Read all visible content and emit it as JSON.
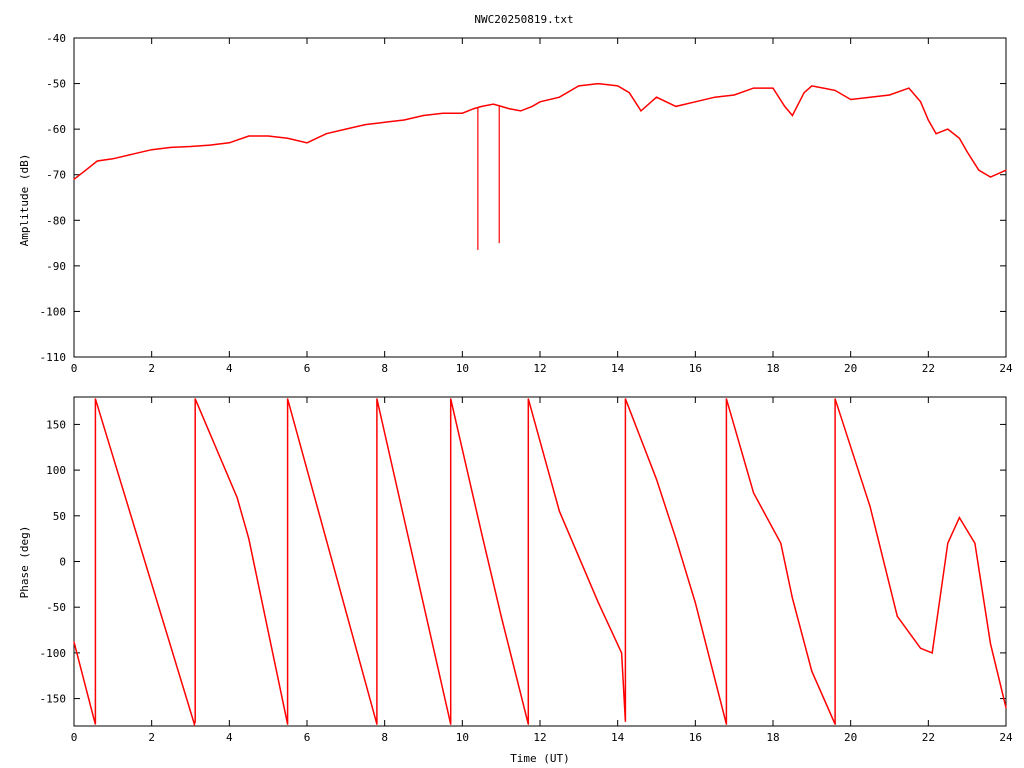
{
  "title": "NWC20250819.txt",
  "colors": {
    "trace": "#ff0000",
    "axis": "#000000",
    "background": "#ffffff"
  },
  "chart_data": [
    {
      "type": "line",
      "ylabel": "Amplitude (dB)",
      "xlabel": "",
      "xlim": [
        0,
        24
      ],
      "ylim": [
        -110,
        -40
      ],
      "xticks": [
        0,
        2,
        4,
        6,
        8,
        10,
        12,
        14,
        16,
        18,
        20,
        22,
        24
      ],
      "yticks": [
        -110,
        -100,
        -90,
        -80,
        -70,
        -60,
        -50,
        -40
      ],
      "xtick_labels": [
        "0",
        "2",
        "4",
        "6",
        "8",
        "10",
        "12",
        "14",
        "16",
        "18",
        "20",
        "22",
        "24"
      ],
      "ytick_labels": [
        "-110",
        "-100",
        "-90",
        "-80",
        "-70",
        "-60",
        "-50",
        "-40"
      ],
      "grid": false,
      "series": [
        {
          "x": [
            0,
            0.3,
            0.6,
            1,
            1.5,
            2,
            2.5,
            3,
            3.5,
            4,
            4.5,
            5,
            5.5,
            6,
            6.5,
            7,
            7.5,
            8,
            8.5,
            9,
            9.5,
            10,
            10.3,
            10.5,
            10.8,
            11,
            11.2,
            11.5,
            11.8,
            12,
            12.5,
            13,
            13.5,
            14,
            14.3,
            14.6,
            15,
            15.5,
            16,
            16.5,
            17,
            17.5,
            18,
            18.3,
            18.5,
            18.8,
            19,
            19.3,
            19.6,
            20,
            20.5,
            21,
            21.5,
            21.8,
            22,
            22.2,
            22.5,
            22.8,
            23,
            23.3,
            23.6,
            24
          ],
          "y": [
            -71,
            -69,
            -67,
            -66.5,
            -65.5,
            -64.5,
            -64,
            -63.8,
            -63.5,
            -63,
            -61.5,
            -61.5,
            -62,
            -63,
            -61,
            -60,
            -59,
            -58.5,
            -58,
            -57,
            -56.5,
            -56.5,
            -55.5,
            -55,
            -54.5,
            -55,
            -55.5,
            -56,
            -55,
            -54,
            -53,
            -50.5,
            -50,
            -50.5,
            -52,
            -56,
            -53,
            -55,
            -54,
            -53,
            -52.5,
            -51,
            -51,
            -55,
            -57,
            -52,
            -50.5,
            -51,
            -51.5,
            -53.5,
            -53,
            -52.5,
            -51,
            -54,
            -58,
            -61,
            -60,
            -62,
            -65,
            -69,
            -70.5,
            -69
          ]
        }
      ],
      "spikes": [
        {
          "x": 10.4,
          "y": -86.5
        },
        {
          "x": 10.95,
          "y": -85
        }
      ]
    },
    {
      "type": "line",
      "ylabel": "Phase (deg)",
      "xlabel": "Time (UT)",
      "xlim": [
        0,
        24
      ],
      "ylim": [
        -180,
        180
      ],
      "xticks": [
        0,
        2,
        4,
        6,
        8,
        10,
        12,
        14,
        16,
        18,
        20,
        22,
        24
      ],
      "yticks": [
        -150,
        -100,
        -50,
        0,
        50,
        100,
        150
      ],
      "xtick_labels": [
        "0",
        "2",
        "4",
        "6",
        "8",
        "10",
        "12",
        "14",
        "16",
        "18",
        "20",
        "22",
        "24"
      ],
      "ytick_labels": [
        "-150",
        "-100",
        "-50",
        "0",
        "50",
        "100",
        "150"
      ],
      "grid": false,
      "series": [
        {
          "x": [
            0,
            0.5,
            0.55,
            0.55,
            3.1,
            3.12,
            3.12,
            4.2,
            4.5,
            5.5,
            5.5,
            5.5,
            7.8,
            7.8,
            7.8,
            9.7,
            9.7,
            9.7,
            10.5,
            11.0,
            11.7,
            11.7,
            11.7,
            12.5,
            13.5,
            14.1,
            14.2,
            14.2,
            15.0,
            15.5,
            16.0,
            16.8,
            16.8,
            16.8,
            17.5,
            18.2,
            18.5,
            19.0,
            19.6,
            19.6,
            19.6,
            20.5,
            21.2,
            21.8,
            22.1,
            22.5,
            22.8,
            23.2,
            23.6,
            24.0
          ],
          "y": [
            -88,
            -170,
            -178,
            178,
            -178,
            -175,
            178,
            70,
            25,
            -178,
            -178,
            178,
            -178,
            -178,
            178,
            -178,
            -178,
            178,
            30,
            -60,
            -178,
            -178,
            178,
            55,
            -45,
            -100,
            -175,
            178,
            90,
            25,
            -45,
            -178,
            -178,
            178,
            75,
            20,
            -40,
            -120,
            -178,
            -178,
            178,
            60,
            -60,
            -95,
            -100,
            20,
            48,
            20,
            -90,
            -160
          ]
        }
      ]
    }
  ]
}
